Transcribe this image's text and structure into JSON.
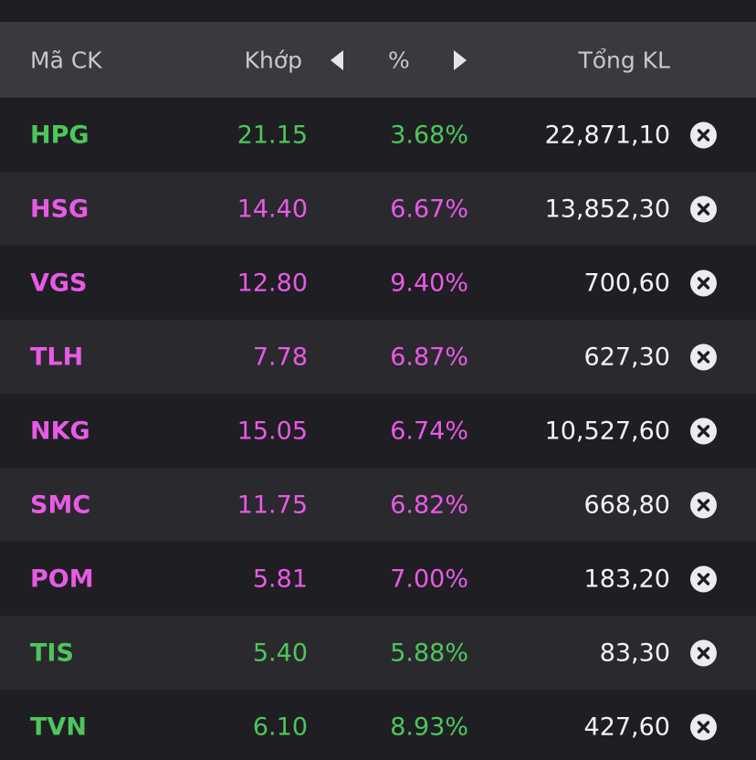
{
  "header": {
    "symbol_label": "Mã CK",
    "match_label": "Khớp",
    "percent_label": "%",
    "volume_label": "Tổng KL"
  },
  "colors": {
    "up": "#4cc75a",
    "ceiling": "#e85ae6",
    "background": "#1e1d22",
    "header_bg": "#3a393e"
  },
  "rows": [
    {
      "symbol": "HPG",
      "price": "21.15",
      "percent": "3.68%",
      "volume": "22,871,10",
      "status": "up"
    },
    {
      "symbol": "HSG",
      "price": "14.40",
      "percent": "6.67%",
      "volume": "13,852,30",
      "status": "ceiling"
    },
    {
      "symbol": "VGS",
      "price": "12.80",
      "percent": "9.40%",
      "volume": "700,60",
      "status": "ceiling"
    },
    {
      "symbol": "TLH",
      "price": "7.78",
      "percent": "6.87%",
      "volume": "627,30",
      "status": "ceiling"
    },
    {
      "symbol": "NKG",
      "price": "15.05",
      "percent": "6.74%",
      "volume": "10,527,60",
      "status": "ceiling"
    },
    {
      "symbol": "SMC",
      "price": "11.75",
      "percent": "6.82%",
      "volume": "668,80",
      "status": "ceiling"
    },
    {
      "symbol": "POM",
      "price": "5.81",
      "percent": "7.00%",
      "volume": "183,20",
      "status": "ceiling"
    },
    {
      "symbol": "TIS",
      "price": "5.40",
      "percent": "5.88%",
      "volume": "83,30",
      "status": "up"
    },
    {
      "symbol": "TVN",
      "price": "6.10",
      "percent": "8.93%",
      "volume": "427,60",
      "status": "up"
    }
  ]
}
